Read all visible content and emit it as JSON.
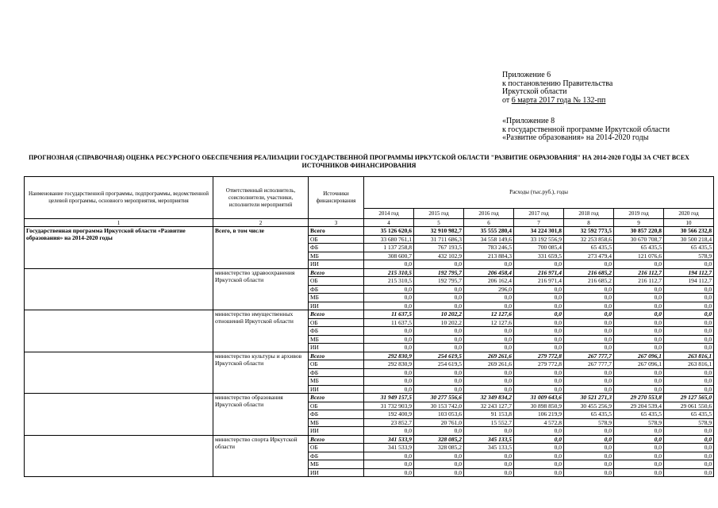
{
  "appendix": {
    "line1": "Приложение 6",
    "line2": "к постановлению Правительства",
    "line3": "Иркутской области",
    "date_prefix": "от ",
    "date_underlined": "6 марта 2017 года № 132-пп",
    "line5": "«Приложение 8",
    "line6": "к государственной программе Иркутской области",
    "line7": "«Развитие образования» на 2014-2020 годы"
  },
  "title": "ПРОГНОЗНАЯ (СПРАВОЧНАЯ) ОЦЕНКА РЕСУРСНОГО ОБЕСПЕЧЕНИЯ РЕАЛИЗАЦИИ ГОСУДАРСТВЕННОЙ ПРОГРАММЫ ИРКУТСКОЙ ОБЛАСТИ \"РАЗВИТИЕ ОБРАЗОВАНИЯ\" НА 2014-2020 ГОДЫ ЗА СЧЕТ ВСЕХ ИСТОЧНИКОВ ФИНАНСИРОВАНИЯ",
  "table": {
    "header": {
      "col1": "Наименование государственной программы, подпрограммы, ведомственной целевой программы, основного мероприятия, мероприятия",
      "col2": "Ответственный исполнитель, соисполнители, участники, исполнители мероприятий",
      "col3": "Источники финансирования",
      "expenses": "Расходы (тыс.руб.), годы",
      "years": [
        "2014 год",
        "2015 год",
        "2016 год",
        "2017 год",
        "2018 год",
        "2019 год",
        "2020 год"
      ],
      "numbers": [
        "1",
        "2",
        "3",
        "4",
        "5",
        "6",
        "7",
        "8",
        "9",
        "10"
      ]
    },
    "groups": [
      {
        "name": "Государственная программа Иркутской области «Развитие образования» на 2014-2020 годы",
        "name_bold": true,
        "executor": "Всего, в том числе",
        "executor_bold": true,
        "rows": [
          {
            "source": "Всего",
            "style": "bold",
            "values": [
              "35 126 620,6",
              "32 910 982,7",
              "35 555 280,4",
              "34 224 301,8",
              "32 592 773,5",
              "30 857 220,8",
              "30 566 232,8"
            ]
          },
          {
            "source": "ОБ",
            "style": "normal",
            "values": [
              "33 680 761,1",
              "31 711 686,3",
              "34 558 149,6",
              "33 192 556,9",
              "32 253 858,6",
              "30 670 708,7",
              "30 500 218,4"
            ]
          },
          {
            "source": "ФБ",
            "style": "normal",
            "values": [
              "1 137 258,8",
              "767 193,5",
              "783 246,5",
              "700 085,4",
              "65 435,5",
              "65 435,5",
              "65 435,5"
            ]
          },
          {
            "source": "МБ",
            "style": "normal",
            "values": [
              "308 600,7",
              "432 102,9",
              "213 884,3",
              "331 659,5",
              "273 479,4",
              "121 076,6",
              "578,9"
            ]
          },
          {
            "source": "ИИ",
            "style": "normal",
            "values": [
              "0,0",
              "0,0",
              "0,0",
              "0,0",
              "0,0",
              "0,0",
              "0,0"
            ]
          }
        ]
      },
      {
        "name": "",
        "executor": "министерство здравоохранения Иркутской области",
        "rows": [
          {
            "source": "Всего",
            "style": "bolditalic",
            "values": [
              "215 310,5",
              "192 795,7",
              "206 458,4",
              "216 971,4",
              "216 685,2",
              "216 112,7",
              "194 112,7"
            ]
          },
          {
            "source": "ОБ",
            "style": "normal",
            "values": [
              "215 310,5",
              "192 795,7",
              "206 162,4",
              "216 971,4",
              "216 685,2",
              "216 112,7",
              "194 112,7"
            ]
          },
          {
            "source": "ФБ",
            "style": "normal",
            "values": [
              "0,0",
              "0,0",
              "296,0",
              "0,0",
              "0,0",
              "0,0",
              "0,0"
            ]
          },
          {
            "source": "МБ",
            "style": "normal",
            "values": [
              "0,0",
              "0,0",
              "0,0",
              "0,0",
              "0,0",
              "0,0",
              "0,0"
            ]
          },
          {
            "source": "ИИ",
            "style": "normal",
            "values": [
              "0,0",
              "0,0",
              "0,0",
              "0,0",
              "0,0",
              "0,0",
              "0,0"
            ]
          }
        ]
      },
      {
        "name": "",
        "executor": "министерство имущественных отношений Иркутской области",
        "rows": [
          {
            "source": "Всего",
            "style": "bolditalic",
            "values": [
              "11 637,5",
              "10 202,2",
              "12 127,6",
              "0,0",
              "0,0",
              "0,0",
              "0,0"
            ]
          },
          {
            "source": "ОБ",
            "style": "normal",
            "values": [
              "11 637,5",
              "10 202,2",
              "12 127,6",
              "0,0",
              "0,0",
              "0,0",
              "0,0"
            ]
          },
          {
            "source": "ФБ",
            "style": "normal",
            "values": [
              "0,0",
              "0,0",
              "0,0",
              "0,0",
              "0,0",
              "0,0",
              "0,0"
            ]
          },
          {
            "source": "МБ",
            "style": "normal",
            "values": [
              "0,0",
              "0,0",
              "0,0",
              "0,0",
              "0,0",
              "0,0",
              "0,0"
            ]
          },
          {
            "source": "ИИ",
            "style": "normal",
            "values": [
              "0,0",
              "0,0",
              "0,0",
              "0,0",
              "0,0",
              "0,0",
              "0,0"
            ]
          }
        ]
      },
      {
        "name": "",
        "executor": "министерство культуры и архивов Иркутской области",
        "rows": [
          {
            "source": "Всего",
            "style": "bolditalic",
            "values": [
              "292 830,9",
              "254 619,5",
              "269 261,6",
              "279 772,8",
              "267 777,7",
              "267 096,1",
              "263 816,1"
            ]
          },
          {
            "source": "ОБ",
            "style": "normal",
            "values": [
              "292 830,9",
              "254 619,5",
              "269 261,6",
              "279 772,8",
              "267 777,7",
              "267 096,1",
              "263 816,1"
            ]
          },
          {
            "source": "ФБ",
            "style": "normal",
            "values": [
              "0,0",
              "0,0",
              "0,0",
              "0,0",
              "0,0",
              "0,0",
              "0,0"
            ]
          },
          {
            "source": "МБ",
            "style": "normal",
            "values": [
              "0,0",
              "0,0",
              "0,0",
              "0,0",
              "0,0",
              "0,0",
              "0,0"
            ]
          },
          {
            "source": "ИИ",
            "style": "normal",
            "values": [
              "0,0",
              "0,0",
              "0,0",
              "0,0",
              "0,0",
              "0,0",
              "0,0"
            ]
          }
        ]
      },
      {
        "name": "",
        "executor": "министерство образования Иркутской области",
        "rows": [
          {
            "source": "Всего",
            "style": "bolditalic",
            "values": [
              "31 949 157,5",
              "30 277 556,6",
              "32 349 834,2",
              "31 009 643,6",
              "30 521 271,3",
              "29 270 553,8",
              "29 127 565,0"
            ]
          },
          {
            "source": "ОБ",
            "style": "normal",
            "values": [
              "31 732 903,9",
              "30 153 742,0",
              "32 243 127,7",
              "30 898 850,9",
              "30 455 256,9",
              "29 204 539,4",
              "29 061 550,6"
            ]
          },
          {
            "source": "ФБ",
            "style": "normal",
            "values": [
              "192 400,9",
              "103 053,6",
              "91 153,8",
              "106 219,9",
              "65 435,5",
              "65 435,5",
              "65 435,5"
            ]
          },
          {
            "source": "МБ",
            "style": "normal",
            "values": [
              "23 852,7",
              "20 761,0",
              "15 552,7",
              "4 572,8",
              "578,9",
              "578,9",
              "578,9"
            ]
          },
          {
            "source": "ИИ",
            "style": "normal",
            "values": [
              "0,0",
              "0,0",
              "0,0",
              "0,0",
              "0,0",
              "0,0",
              "0,0"
            ]
          }
        ]
      },
      {
        "name": "",
        "executor": "министерство спорта Иркутской области",
        "rows": [
          {
            "source": "Всего",
            "style": "bolditalic",
            "values": [
              "341 533,9",
              "328 085,2",
              "345 133,5",
              "0,0",
              "0,0",
              "0,0",
              "0,0"
            ]
          },
          {
            "source": "ОБ",
            "style": "normal",
            "values": [
              "341 533,9",
              "328 085,2",
              "345 133,5",
              "0,0",
              "0,0",
              "0,0",
              "0,0"
            ]
          },
          {
            "source": "ФБ",
            "style": "normal",
            "values": [
              "0,0",
              "0,0",
              "0,0",
              "0,0",
              "0,0",
              "0,0",
              "0,0"
            ]
          },
          {
            "source": "МБ",
            "style": "normal",
            "values": [
              "0,0",
              "0,0",
              "0,0",
              "0,0",
              "0,0",
              "0,0",
              "0,0"
            ]
          },
          {
            "source": "ИИ",
            "style": "normal",
            "values": [
              "0,0",
              "0,0",
              "0,0",
              "0,0",
              "0,0",
              "0,0",
              "0,0"
            ]
          }
        ]
      }
    ]
  }
}
